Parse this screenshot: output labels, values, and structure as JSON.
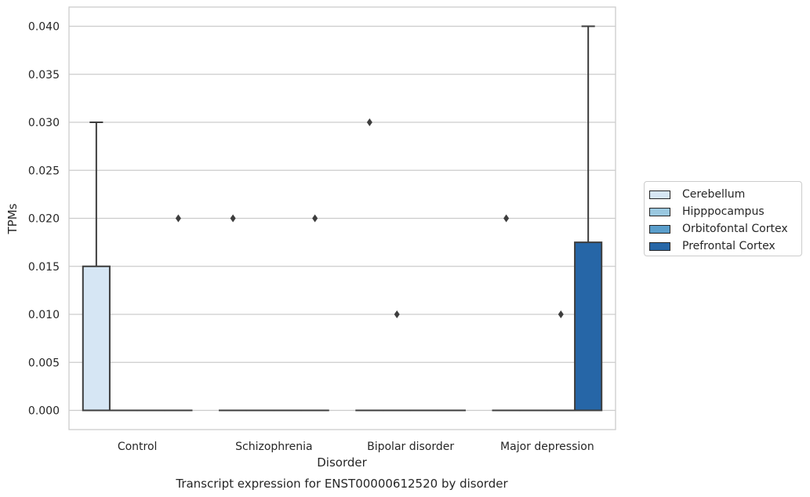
{
  "chart_data": {
    "type": "box",
    "title": "Transcript expression for ENST00000612520 by disorder",
    "xlabel": "Disorder",
    "ylabel": "TPMs",
    "ylim": [
      -0.002,
      0.042
    ],
    "yticks": [
      "0.000",
      "0.005",
      "0.010",
      "0.015",
      "0.020",
      "0.025",
      "0.030",
      "0.035",
      "0.040"
    ],
    "categories": [
      "Control",
      "Schizophrenia",
      "Bipolar disorder",
      "Major depression"
    ],
    "grid": true,
    "legend_position": "right",
    "series": [
      {
        "name": "Cerebellum",
        "color": "#d6e6f4",
        "boxes": [
          {
            "min": 0,
            "q1": 0,
            "median": 0,
            "q3": 0.015,
            "max": 0.03,
            "outliers": []
          },
          {
            "min": 0,
            "q1": 0,
            "median": 0,
            "q3": 0,
            "max": 0,
            "outliers": [
              0.02
            ]
          },
          {
            "min": 0,
            "q1": 0,
            "median": 0,
            "q3": 0,
            "max": 0,
            "outliers": [
              0.03
            ]
          },
          {
            "min": 0,
            "q1": 0,
            "median": 0,
            "q3": 0,
            "max": 0,
            "outliers": [
              0.02
            ]
          }
        ]
      },
      {
        "name": "Hipppocampus",
        "color": "#9ac8e0",
        "boxes": [
          {
            "min": 0,
            "q1": 0,
            "median": 0,
            "q3": 0,
            "max": 0,
            "outliers": []
          },
          {
            "min": 0,
            "q1": 0,
            "median": 0,
            "q3": 0,
            "max": 0,
            "outliers": []
          },
          {
            "min": 0,
            "q1": 0,
            "median": 0,
            "q3": 0,
            "max": 0,
            "outliers": [
              0.01
            ]
          },
          {
            "min": 0,
            "q1": 0,
            "median": 0,
            "q3": 0,
            "max": 0,
            "outliers": []
          }
        ]
      },
      {
        "name": "Orbitofontal Cortex",
        "color": "#5a9ecb",
        "boxes": [
          {
            "min": 0,
            "q1": 0,
            "median": 0,
            "q3": 0,
            "max": 0,
            "outliers": []
          },
          {
            "min": 0,
            "q1": 0,
            "median": 0,
            "q3": 0,
            "max": 0,
            "outliers": []
          },
          {
            "min": 0,
            "q1": 0,
            "median": 0,
            "q3": 0,
            "max": 0,
            "outliers": []
          },
          {
            "min": 0,
            "q1": 0,
            "median": 0,
            "q3": 0,
            "max": 0,
            "outliers": [
              0.01
            ]
          }
        ]
      },
      {
        "name": "Prefrontal Cortex",
        "color": "#2666a7",
        "boxes": [
          {
            "min": 0,
            "q1": 0,
            "median": 0,
            "q3": 0,
            "max": 0,
            "outliers": [
              0.02
            ]
          },
          {
            "min": 0,
            "q1": 0,
            "median": 0,
            "q3": 0,
            "max": 0,
            "outliers": [
              0.02
            ]
          },
          {
            "min": 0,
            "q1": 0,
            "median": 0,
            "q3": 0,
            "max": 0,
            "outliers": []
          },
          {
            "min": 0,
            "q1": 0,
            "median": 0,
            "q3": 0.0175,
            "max": 0.04,
            "outliers": []
          }
        ]
      }
    ]
  }
}
